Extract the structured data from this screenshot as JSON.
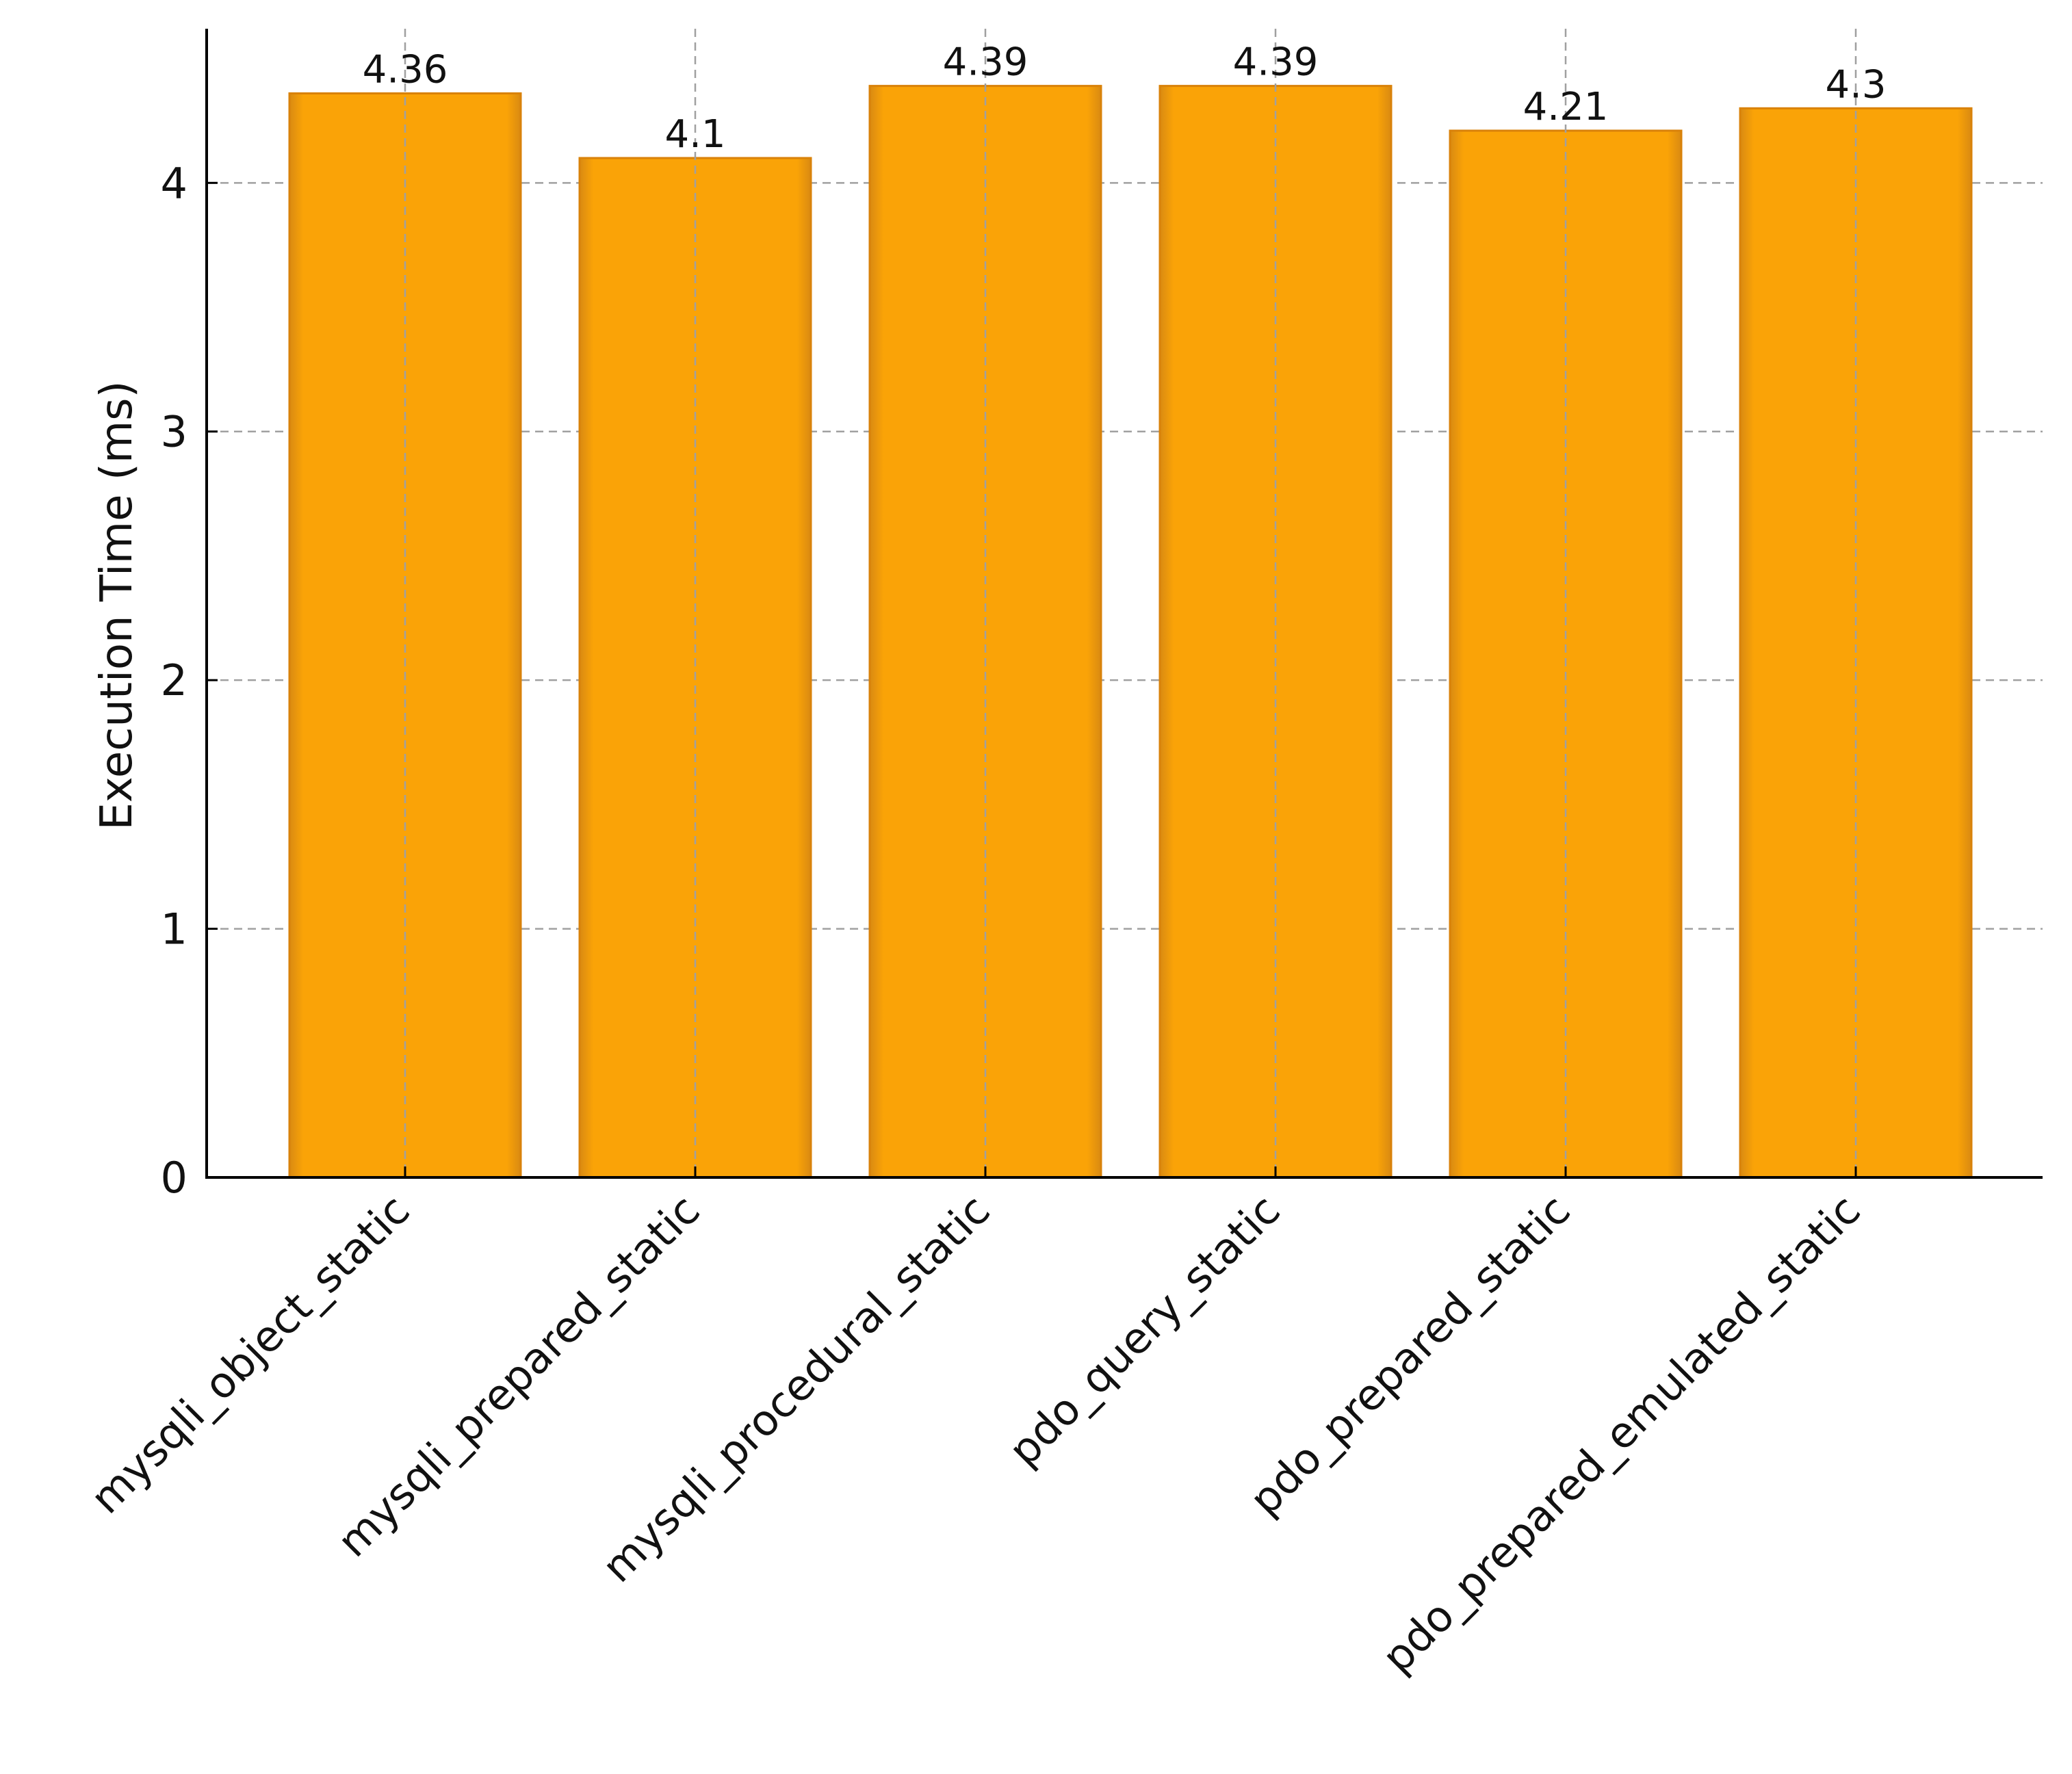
{
  "chart_data": {
    "type": "bar",
    "title": "",
    "xlabel": "",
    "ylabel": "Execution Time (ms)",
    "categories": [
      "mysqli_object_static",
      "mysqli_prepared_static",
      "mysqli_procedural_static",
      "pdo_query_static",
      "pdo_prepared_static",
      "pdo_prepared_emulated_static"
    ],
    "values": [
      4.36,
      4.1,
      4.39,
      4.39,
      4.21,
      4.3
    ],
    "value_labels": [
      "4.36",
      "4.1",
      "4.39",
      "4.39",
      "4.21",
      "4.3"
    ],
    "ylim": [
      0,
      4.62
    ],
    "yticks": [
      0,
      1,
      2,
      3,
      4
    ],
    "ytick_labels": [
      "0",
      "1",
      "2",
      "3",
      "4"
    ],
    "grid": true,
    "legend": "none",
    "bar_color": "#FAA307",
    "bar_edge_color": "#D9820A",
    "grid_color": "#A0A0A0"
  }
}
